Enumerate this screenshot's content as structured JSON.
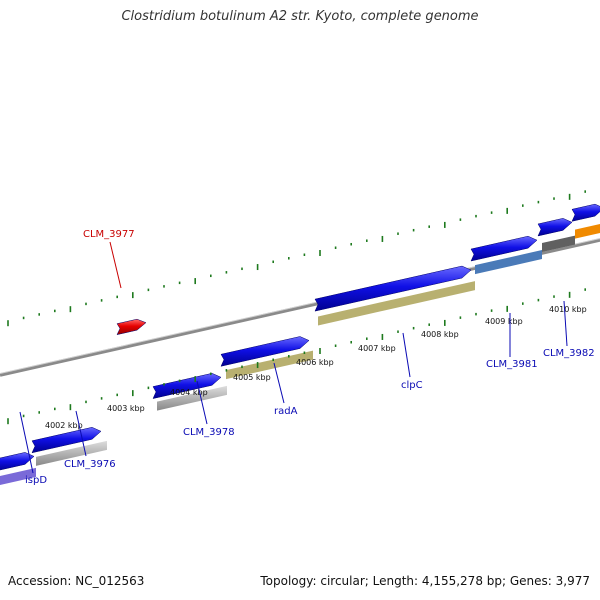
{
  "title": "Clostridium botulinum A2 str. Kyoto, complete genome",
  "footer": {
    "accession": "Accession: NC_012563",
    "summary": "Topology: circular; Length: 4,155,278 bp; Genes: 3,977"
  },
  "colors": {
    "forward_strand": "#1010e6",
    "reverse_strand": "#e60000",
    "backbone": "#8a8a8a",
    "ticks": "#1e7a1e",
    "forward_label": "#0a0ab4",
    "reverse_label": "#c80000"
  },
  "position_labels": [
    "4002 kbp",
    "4003 kbp",
    "4004 kbp",
    "4005 kbp",
    "4006 kbp",
    "4007 kbp",
    "4008 kbp",
    "4009 kbp",
    "4010 kbp"
  ],
  "gene_labels": [
    {
      "text": "CLM_3977",
      "strand": "reverse"
    },
    {
      "text": "ispD",
      "strand": "forward"
    },
    {
      "text": "CLM_3976",
      "strand": "forward"
    },
    {
      "text": "CLM_3978",
      "strand": "forward"
    },
    {
      "text": "radA",
      "strand": "forward"
    },
    {
      "text": "clpC",
      "strand": "forward"
    },
    {
      "text": "CLM_3981",
      "strand": "forward"
    },
    {
      "text": "CLM_3982",
      "strand": "forward"
    }
  ]
}
